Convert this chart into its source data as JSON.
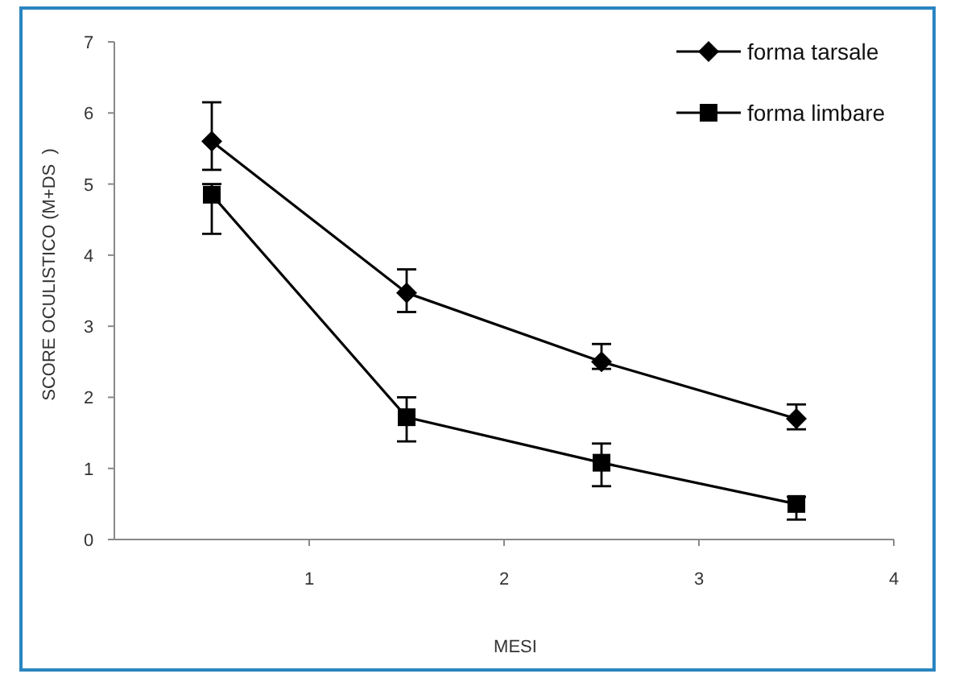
{
  "chart_data": {
    "type": "line",
    "xlabel": "MESI",
    "ylabel": "SCORE OCULISTICO (M+DS  )",
    "xlim": [
      0,
      4
    ],
    "xticks": [
      1,
      2,
      3,
      4
    ],
    "ylim": [
      0,
      7
    ],
    "yticks": [
      0,
      1,
      2,
      3,
      4,
      5,
      6,
      7
    ],
    "grid": false,
    "legend": "top right",
    "line_style": "solid",
    "series": [
      {
        "name": "forma tarsale",
        "color": "#000000",
        "marker": "diamond",
        "x": [
          0.5,
          1.5,
          2.5,
          3.5
        ],
        "values": [
          5.6,
          3.47,
          2.5,
          1.7
        ],
        "errors": [
          [
            5.2,
            6.15
          ],
          [
            3.2,
            3.8
          ],
          [
            2.4,
            2.75
          ],
          [
            1.55,
            1.9
          ]
        ]
      },
      {
        "name": "forma limbare",
        "color": "#000000",
        "marker": "square",
        "x": [
          0.5,
          1.5,
          2.5,
          3.5
        ],
        "values": [
          4.85,
          1.72,
          1.08,
          0.5
        ],
        "errors": [
          [
            4.3,
            5.0
          ],
          [
            1.38,
            2.0
          ],
          [
            0.75,
            1.35
          ],
          [
            0.28,
            0.6
          ]
        ]
      }
    ]
  }
}
